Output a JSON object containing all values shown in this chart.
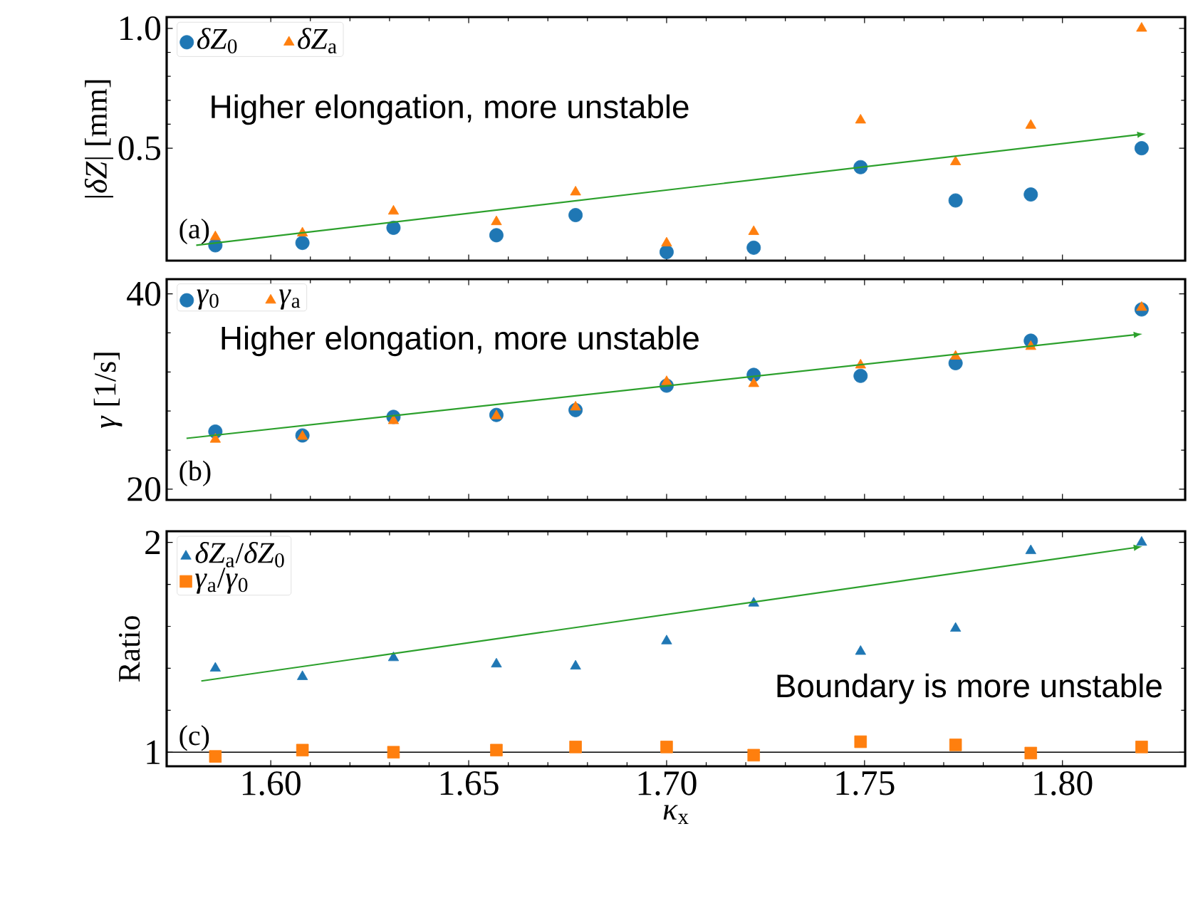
{
  "chart_data": [
    {
      "type": "scatter",
      "ylabel": "|*δZ*| [mm]",
      "xlim": [
        1.5737,
        1.831
      ],
      "ylim": [
        0.031,
        1.047
      ],
      "xticks": [
        {
          "value": 1.6,
          "label": null
        },
        {
          "value": 1.65,
          "label": null
        },
        {
          "value": 1.7,
          "label": null
        },
        {
          "value": 1.75,
          "label": null
        },
        {
          "value": 1.8,
          "label": null
        }
      ],
      "yticks": [
        0.5,
        {
          "value": 1.0,
          "label": "1.0"
        }
      ],
      "tick_labels": "y",
      "legend": "top left",
      "x": [
        1.586,
        1.608,
        1.631,
        1.657,
        1.677,
        1.7,
        1.722,
        1.749,
        1.773,
        1.792,
        1.82
      ],
      "series": [
        {
          "name": "*δZ*$_{0}$",
          "color": "#1f77b4",
          "marker": "circle",
          "values": [
            0.095,
            0.105,
            0.168,
            0.137,
            0.221,
            0.067,
            0.085,
            0.421,
            0.282,
            0.307,
            0.5
          ]
        },
        {
          "name": "*δZ*$_{a}$",
          "color": "#ff7f0e",
          "marker": "triangle",
          "values": [
            0.13,
            0.146,
            0.237,
            0.193,
            0.317,
            0.104,
            0.152,
            0.617,
            0.443,
            0.595,
            1.0
          ]
        }
      ],
      "annotations": [
        "Higher elongation, more unstable",
        "(a)"
      ]
    },
    {
      "type": "scatter",
      "ylabel": "*γ* [1/s]",
      "xlim": [
        1.5737,
        1.831
      ],
      "ylim": [
        18.9,
        41.5
      ],
      "xticks": [
        {
          "value": 1.6,
          "label": null
        },
        {
          "value": 1.65,
          "label": null
        },
        {
          "value": 1.7,
          "label": null
        },
        {
          "value": 1.75,
          "label": null
        },
        {
          "value": 1.8,
          "label": null
        }
      ],
      "yticks": [
        20,
        40
      ],
      "tick_labels": "y",
      "legend": "top left",
      "x": [
        1.586,
        1.608,
        1.631,
        1.657,
        1.677,
        1.7,
        1.722,
        1.749,
        1.773,
        1.792,
        1.82
      ],
      "series": [
        {
          "name": "*γ*$_{0}$",
          "color": "#1f77b4",
          "marker": "circle",
          "values": [
            25.9,
            25.5,
            27.4,
            27.6,
            28.1,
            30.6,
            31.7,
            31.6,
            32.9,
            35.2,
            38.4
          ]
        },
        {
          "name": "*γ*$_{a}$",
          "color": "#ff7f0e",
          "marker": "triangle",
          "values": [
            25.1,
            25.4,
            27.0,
            27.5,
            28.4,
            31.0,
            30.8,
            32.7,
            33.6,
            34.6,
            38.6
          ]
        }
      ],
      "annotations": [
        "Higher elongation, more unstable",
        "(b)"
      ]
    },
    {
      "type": "scatter",
      "ylabel": "Ratio",
      "xlabel": "*κ*$_{x}$",
      "xlim": [
        1.5737,
        1.831
      ],
      "ylim": [
        0.933,
        2.053
      ],
      "xticks": [
        {
          "value": 1.6,
          "label": "1.60"
        },
        {
          "value": 1.65,
          "label": "1.65"
        },
        {
          "value": 1.7,
          "label": "1.70"
        },
        {
          "value": 1.75,
          "label": "1.75"
        },
        {
          "value": 1.8,
          "label": "1.80"
        }
      ],
      "yticks": [
        1,
        2
      ],
      "legend": "top left",
      "x": [
        1.586,
        1.608,
        1.631,
        1.657,
        1.677,
        1.7,
        1.722,
        1.749,
        1.773,
        1.792,
        1.82
      ],
      "series": [
        {
          "name": "*δZ*$_{a}$/*δZ*$_{0}$",
          "color": "#1f77b4",
          "marker": "triangle",
          "values": [
            1.4,
            1.36,
            1.45,
            1.42,
            1.41,
            1.53,
            1.71,
            1.48,
            1.59,
            1.96,
            2.0
          ]
        },
        {
          "name": "*γ*$_{a}$/*γ*$_{0}$",
          "color": "#ff7f0e",
          "marker": "square",
          "values": [
            0.98,
            1.01,
            1.0,
            1.01,
            1.025,
            1.025,
            0.986,
            1.05,
            1.035,
            0.996,
            1.025
          ]
        }
      ],
      "ref_lines": [
        {
          "axis": "y",
          "value": 1,
          "color": "#000000"
        }
      ],
      "annotations": [
        "Boundary is more unstable",
        "(c)"
      ]
    }
  ]
}
